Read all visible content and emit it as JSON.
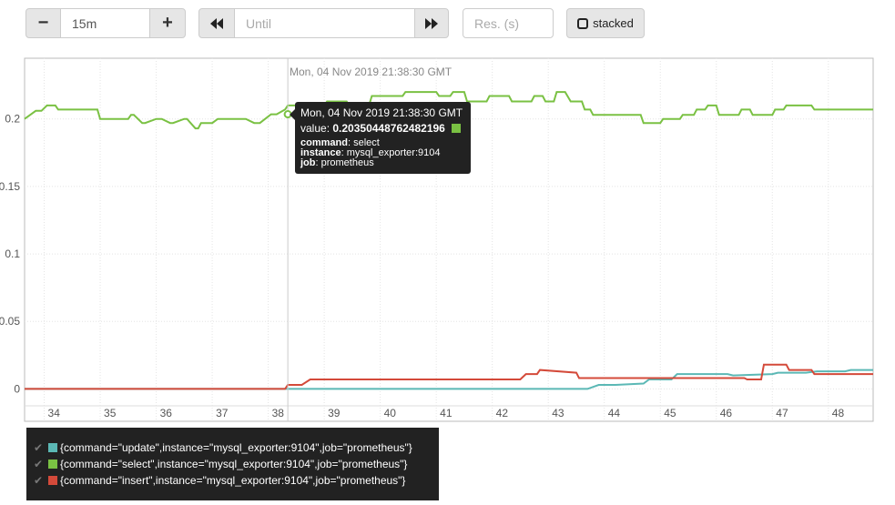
{
  "controls": {
    "range_minus": "−",
    "range_value": "15m",
    "range_plus": "+",
    "back_icon": "double-chevron-left",
    "until_placeholder": "Until",
    "forward_icon": "double-chevron-right",
    "resolution_placeholder": "Res. (s)",
    "stacked_label": "stacked"
  },
  "chart_data": {
    "type": "line",
    "x_ticks": [
      "34",
      "35",
      "36",
      "37",
      "38",
      "39",
      "40",
      "41",
      "42",
      "43",
      "44",
      "45",
      "46",
      "47",
      "48"
    ],
    "y_ticks": [
      "0.2",
      "0.15",
      "0.1",
      "0.05",
      "0"
    ],
    "ylim": [
      -0.024,
      0.245
    ],
    "grid": true,
    "series": [
      {
        "name": "{command=\"update\",instance=\"mysql_exporter:9104\",job=\"prometheus\"}",
        "color": "#5bb8b5",
        "x": [
          33.65,
          43.7,
          43.9,
          44.2,
          44.7,
          44.8,
          45.2,
          45.3,
          46.2,
          46.3,
          47.0,
          47.1,
          47.6,
          47.8,
          48.3,
          48.4,
          48.8
        ],
        "y": [
          0,
          0,
          0.003,
          0.003,
          0.004,
          0.007,
          0.007,
          0.011,
          0.011,
          0.01,
          0.011,
          0.012,
          0.012,
          0.013,
          0.013,
          0.014,
          0.014
        ]
      },
      {
        "name": "{command=\"select\",instance=\"mysql_exporter:9104\",job=\"prometheus\"}",
        "color": "#7ac143",
        "x": [
          33.65,
          33.85,
          33.95,
          34.05,
          34.2,
          34.25,
          34.95,
          35.0,
          35.5,
          35.55,
          35.6,
          35.75,
          35.8,
          36.0,
          36.1,
          36.25,
          36.3,
          36.5,
          36.55,
          36.7,
          36.75,
          36.8,
          37.0,
          37.1,
          37.6,
          37.75,
          37.85,
          38.05,
          38.15,
          38.3,
          38.35,
          39.0,
          39.05,
          39.4,
          39.45,
          39.8,
          39.85,
          40.4,
          40.45,
          41.0,
          41.05,
          41.25,
          41.3,
          41.5,
          41.55,
          41.9,
          41.95,
          42.3,
          42.35,
          42.7,
          42.75,
          42.9,
          42.95,
          43.1,
          43.15,
          43.3,
          43.4,
          43.6,
          43.65,
          43.75,
          43.8,
          44.65,
          44.7,
          45.0,
          45.05,
          45.35,
          45.4,
          45.6,
          45.65,
          45.8,
          45.85,
          46.0,
          46.05,
          46.4,
          46.45,
          46.6,
          46.65,
          47.0,
          47.05,
          47.2,
          47.25,
          47.7,
          47.75,
          48.0,
          48.05,
          48.8
        ],
        "y": [
          0.2,
          0.206,
          0.206,
          0.21,
          0.21,
          0.207,
          0.207,
          0.2,
          0.2,
          0.203,
          0.203,
          0.197,
          0.197,
          0.2,
          0.2,
          0.197,
          0.197,
          0.2,
          0.2,
          0.193,
          0.193,
          0.197,
          0.197,
          0.2,
          0.2,
          0.197,
          0.197,
          0.2035,
          0.2035,
          0.207,
          0.21,
          0.21,
          0.213,
          0.213,
          0.21,
          0.21,
          0.217,
          0.217,
          0.22,
          0.22,
          0.217,
          0.217,
          0.22,
          0.22,
          0.213,
          0.213,
          0.217,
          0.217,
          0.213,
          0.213,
          0.217,
          0.217,
          0.213,
          0.213,
          0.22,
          0.22,
          0.213,
          0.213,
          0.207,
          0.207,
          0.203,
          0.203,
          0.197,
          0.197,
          0.2,
          0.2,
          0.203,
          0.203,
          0.207,
          0.207,
          0.21,
          0.21,
          0.203,
          0.203,
          0.207,
          0.207,
          0.203,
          0.203,
          0.207,
          0.207,
          0.21,
          0.21,
          0.207,
          0.207,
          0.207,
          0.207
        ]
      },
      {
        "name": "{command=\"insert\",instance=\"mysql_exporter:9104\",job=\"prometheus\"}",
        "color": "#d44a3a",
        "x": [
          33.65,
          38.3,
          38.35,
          38.6,
          38.75,
          41.0,
          41.05,
          42.5,
          42.6,
          42.8,
          42.85,
          43.5,
          43.55,
          46.5,
          46.55,
          46.8,
          46.85,
          47.25,
          47.3,
          47.7,
          47.75,
          48.8
        ],
        "y": [
          0,
          0,
          0.003,
          0.003,
          0.007,
          0.007,
          0.007,
          0.007,
          0.011,
          0.011,
          0.014,
          0.012,
          0.008,
          0.008,
          0.007,
          0.007,
          0.018,
          0.018,
          0.014,
          0.014,
          0.011,
          0.011
        ]
      }
    ],
    "hover": {
      "x": 38.35,
      "y": 0.2035,
      "series": "select"
    }
  },
  "tooltip": {
    "top_time": "Mon, 04 Nov 2019 21:38:30 GMT",
    "time": "Mon, 04 Nov 2019 21:38:30 GMT",
    "value_label": "value:",
    "value": "0.20350448762482196",
    "command_label": "command",
    "command_value": "select",
    "instance_label": "instance",
    "instance_value": "mysql_exporter:9104",
    "job_label": "job",
    "job_value": "prometheus",
    "swatch_color": "#7ac143"
  },
  "legend": {
    "items": [
      {
        "label": "{command=\"update\",instance=\"mysql_exporter:9104\",job=\"prometheus\"}",
        "color": "#5bb8b5"
      },
      {
        "label": "{command=\"select\",instance=\"mysql_exporter:9104\",job=\"prometheus\"}",
        "color": "#7ac143"
      },
      {
        "label": "{command=\"insert\",instance=\"mysql_exporter:9104\",job=\"prometheus\"}",
        "color": "#d44a3a"
      }
    ]
  }
}
